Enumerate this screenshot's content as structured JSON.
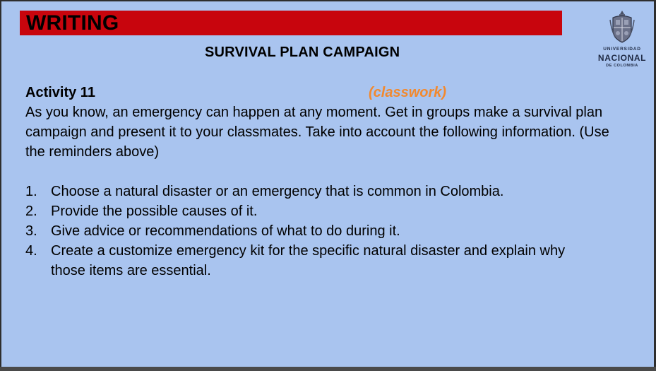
{
  "slide": {
    "banner_title": "WRITING",
    "subtitle": "SURVIVAL PLAN CAMPAIGN",
    "logo": {
      "icon": "university-crest-icon",
      "line1": "UNIVERSIDAD",
      "line2": "NACIONAL",
      "line3": "DE COLOMBIA"
    },
    "activity_label": "Activity 11",
    "activity_tag": "(classwork)",
    "intro_text": "As you know, an emergency can happen at any moment. Get in groups make a survival plan campaign and present it to your classmates. Take into account the following information. (Use the reminders above)",
    "steps": [
      {
        "num": "1.",
        "text": "Choose a natural disaster or an emergency that is common in Colombia."
      },
      {
        "num": "2.",
        "text": "Provide the possible causes of it."
      },
      {
        "num": "3.",
        "text": "Give advice or recommendations of what to do during it."
      },
      {
        "num": "4.",
        "text": "Create a customize emergency kit for the specific natural disaster and explain why those items are essential."
      }
    ],
    "colors": {
      "background": "#a9c4ef",
      "banner": "#c8050d",
      "accent": "#f2892e"
    }
  }
}
